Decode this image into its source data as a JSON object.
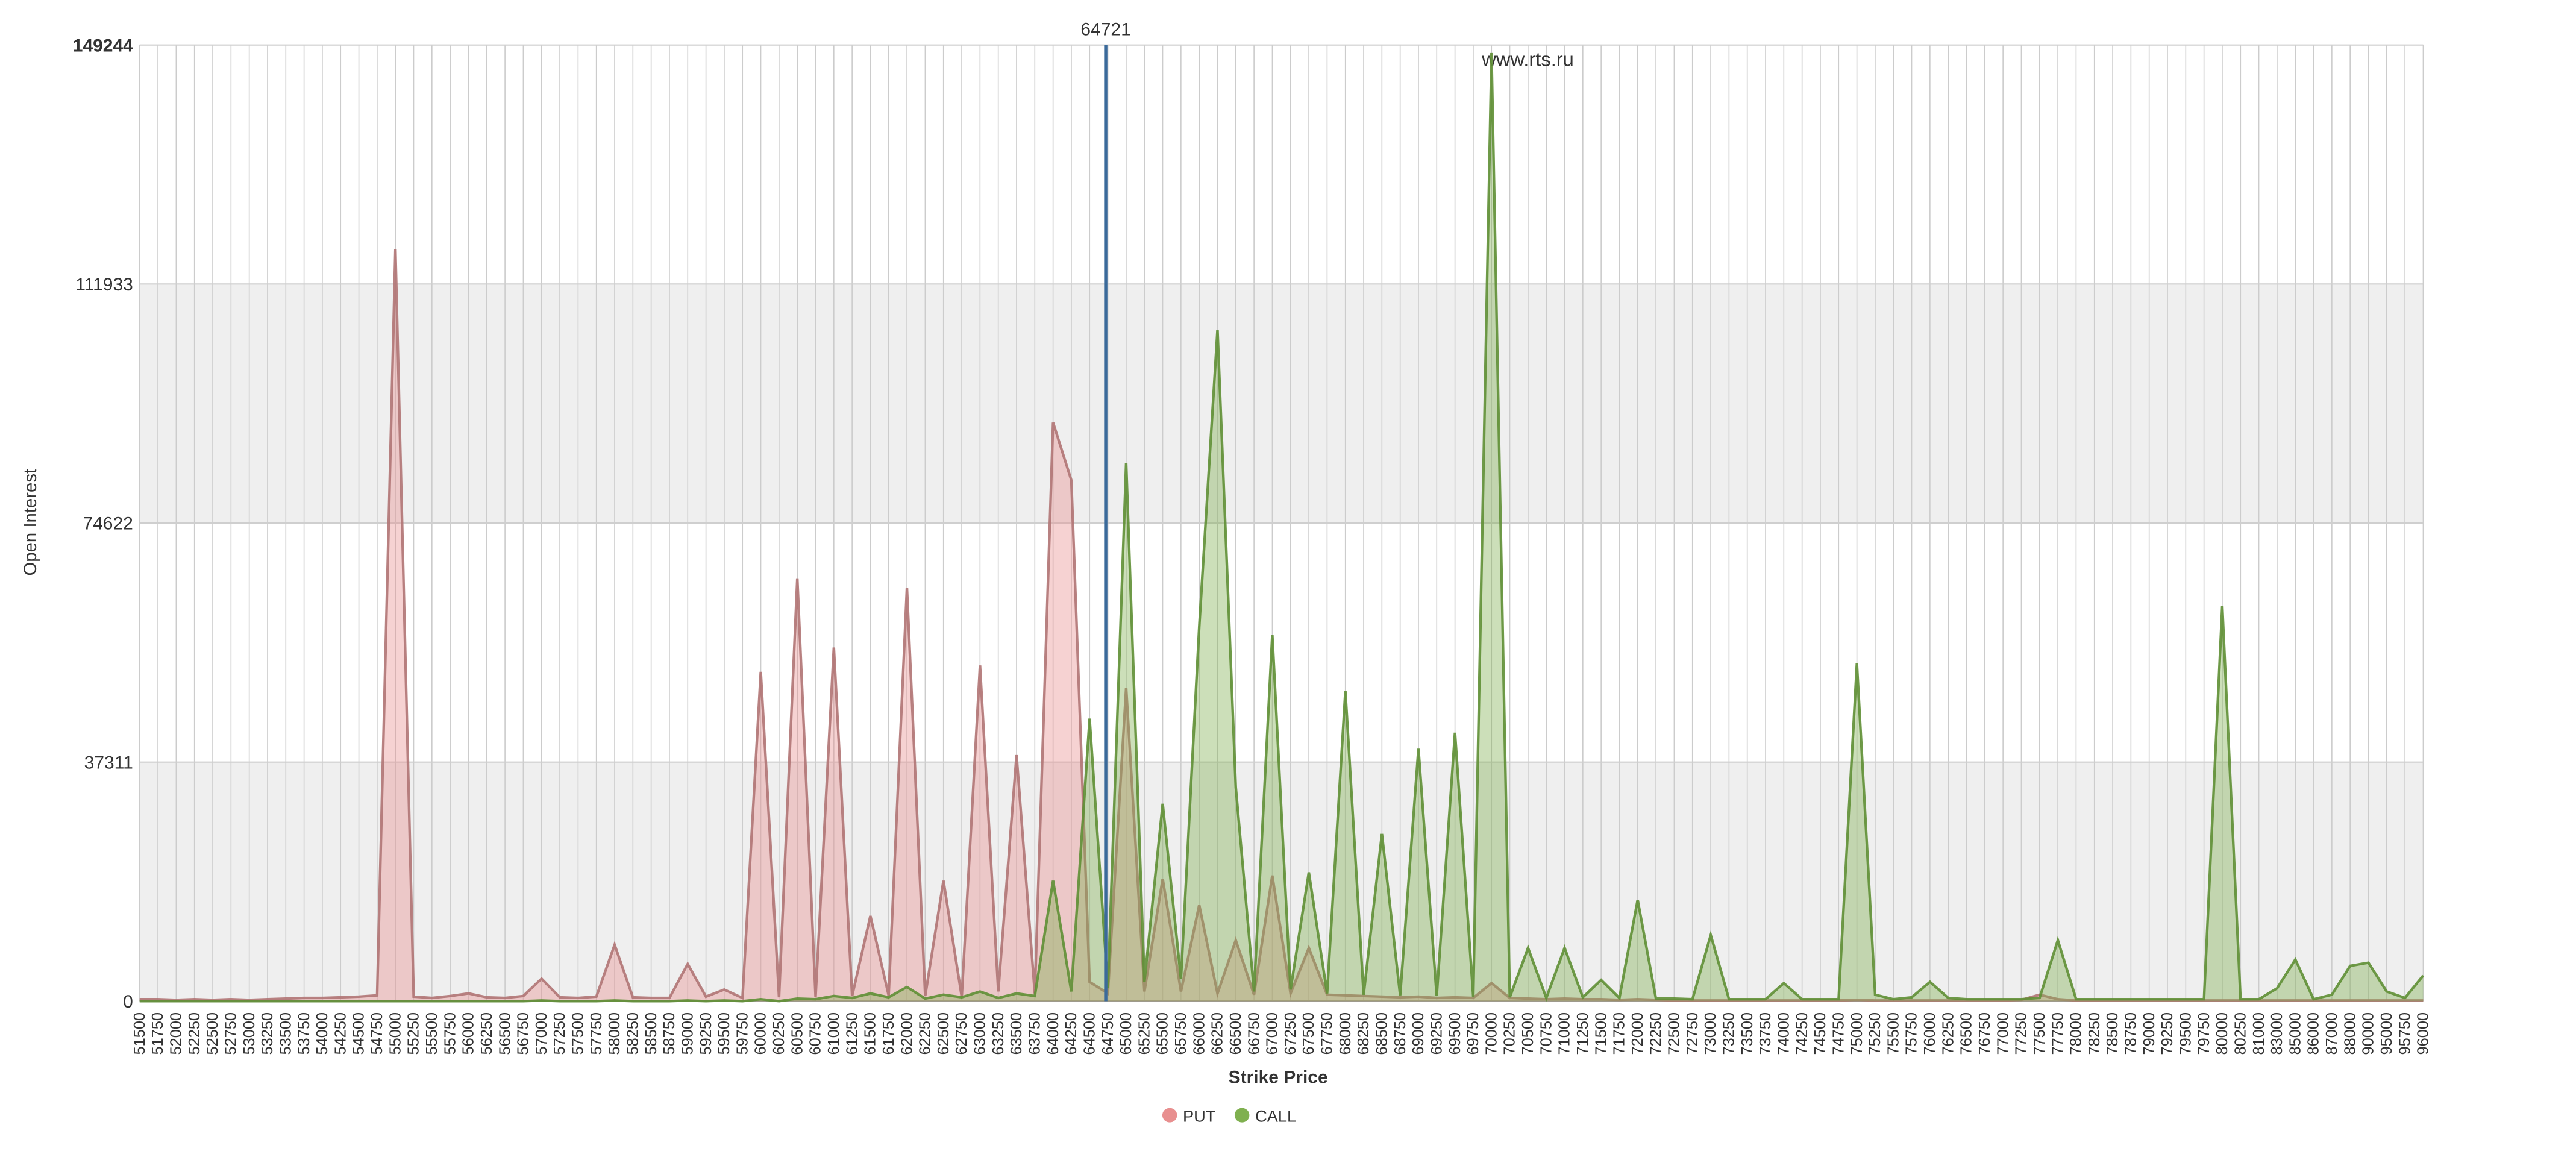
{
  "chart_data": {
    "type": "area",
    "y_label": "Open Interest",
    "x_label": "Strike Price",
    "watermark": "www.rts.ru",
    "marker": 64721,
    "ylim": [
      0,
      149244
    ],
    "yticks": [
      0,
      37311,
      74622,
      111933,
      149244
    ],
    "legend": "bottom",
    "categories": [
      "51500",
      "51750",
      "52000",
      "52250",
      "52500",
      "52750",
      "53000",
      "53250",
      "53500",
      "53750",
      "54000",
      "54250",
      "54500",
      "54750",
      "55000",
      "55250",
      "55500",
      "55750",
      "56000",
      "56250",
      "56500",
      "56750",
      "57000",
      "57250",
      "57500",
      "57750",
      "58000",
      "58250",
      "58500",
      "58750",
      "59000",
      "59250",
      "59500",
      "59750",
      "60000",
      "60250",
      "60500",
      "60750",
      "61000",
      "61250",
      "61500",
      "61750",
      "62000",
      "62250",
      "62500",
      "62750",
      "63000",
      "63250",
      "63500",
      "63750",
      "64000",
      "64250",
      "64500",
      "64750",
      "65000",
      "65250",
      "65500",
      "65750",
      "66000",
      "66250",
      "66500",
      "66750",
      "67000",
      "67250",
      "67500",
      "67750",
      "68000",
      "68250",
      "68500",
      "68750",
      "69000",
      "69250",
      "69500",
      "69750",
      "70000",
      "70250",
      "70500",
      "70750",
      "71000",
      "71250",
      "71500",
      "71750",
      "72000",
      "72250",
      "72500",
      "72750",
      "73000",
      "73250",
      "73500",
      "73750",
      "74000",
      "74250",
      "74500",
      "74750",
      "75000",
      "75250",
      "75500",
      "75750",
      "76000",
      "76250",
      "76500",
      "76750",
      "77000",
      "77250",
      "77500",
      "77750",
      "78000",
      "78250",
      "78500",
      "78750",
      "79000",
      "79250",
      "79500",
      "79750",
      "80000",
      "80250",
      "81000",
      "83000",
      "85000",
      "86000",
      "87000",
      "88000",
      "90000",
      "95000",
      "95750",
      "96000"
    ],
    "series": [
      {
        "name": "PUT",
        "color": "#e88f8f",
        "stroke": "#b07474",
        "values": [
          300,
          300,
          200,
          300,
          200,
          300,
          200,
          300,
          400,
          500,
          500,
          600,
          700,
          900,
          117400,
          700,
          500,
          800,
          1200,
          600,
          500,
          800,
          3500,
          600,
          500,
          700,
          8800,
          600,
          500,
          500,
          5800,
          700,
          1800,
          500,
          51400,
          600,
          66000,
          700,
          55200,
          800,
          13300,
          900,
          64500,
          800,
          18800,
          700,
          52400,
          1500,
          38400,
          1200,
          90300,
          81300,
          3000,
          1200,
          48900,
          1500,
          19100,
          1500,
          15000,
          1200,
          9500,
          1000,
          19600,
          1200,
          8300,
          1000,
          900,
          800,
          700,
          600,
          700,
          500,
          600,
          500,
          2800,
          500,
          400,
          300,
          400,
          300,
          300,
          200,
          300,
          200,
          100,
          100,
          100,
          100,
          100,
          100,
          100,
          100,
          100,
          100,
          200,
          100,
          100,
          100,
          100,
          100,
          100,
          100,
          100,
          200,
          1000,
          300,
          100,
          100,
          100,
          100,
          100,
          100,
          100,
          100,
          100,
          100,
          100,
          100,
          100,
          100,
          100,
          100,
          100,
          100,
          100,
          100
        ]
      },
      {
        "name": "CALL",
        "color": "#7fb04f",
        "stroke": "#5f8f35",
        "values": [
          0,
          0,
          0,
          0,
          0,
          0,
          0,
          0,
          0,
          0,
          0,
          0,
          0,
          0,
          0,
          0,
          0,
          0,
          0,
          0,
          0,
          0,
          100,
          0,
          0,
          0,
          100,
          0,
          0,
          0,
          100,
          0,
          100,
          0,
          300,
          0,
          400,
          300,
          800,
          500,
          1200,
          600,
          2200,
          400,
          1000,
          600,
          1500,
          500,
          1200,
          800,
          18800,
          1500,
          44100,
          2000,
          84000,
          3000,
          30800,
          3500,
          58400,
          104800,
          33400,
          1500,
          57200,
          1800,
          20100,
          1200,
          48400,
          1000,
          26100,
          900,
          39400,
          800,
          41900,
          700,
          148000,
          600,
          8300,
          500,
          8300,
          600,
          3300,
          500,
          15800,
          400,
          400,
          300,
          10300,
          300,
          300,
          300,
          2800,
          300,
          300,
          300,
          52700,
          1000,
          300,
          600,
          3000,
          500,
          300,
          300,
          300,
          300,
          500,
          9500,
          300,
          300,
          300,
          300,
          300,
          300,
          300,
          300,
          61700,
          300,
          300,
          2000,
          6500,
          300,
          1000,
          5500,
          6000,
          1500,
          500,
          4000
        ]
      }
    ]
  }
}
